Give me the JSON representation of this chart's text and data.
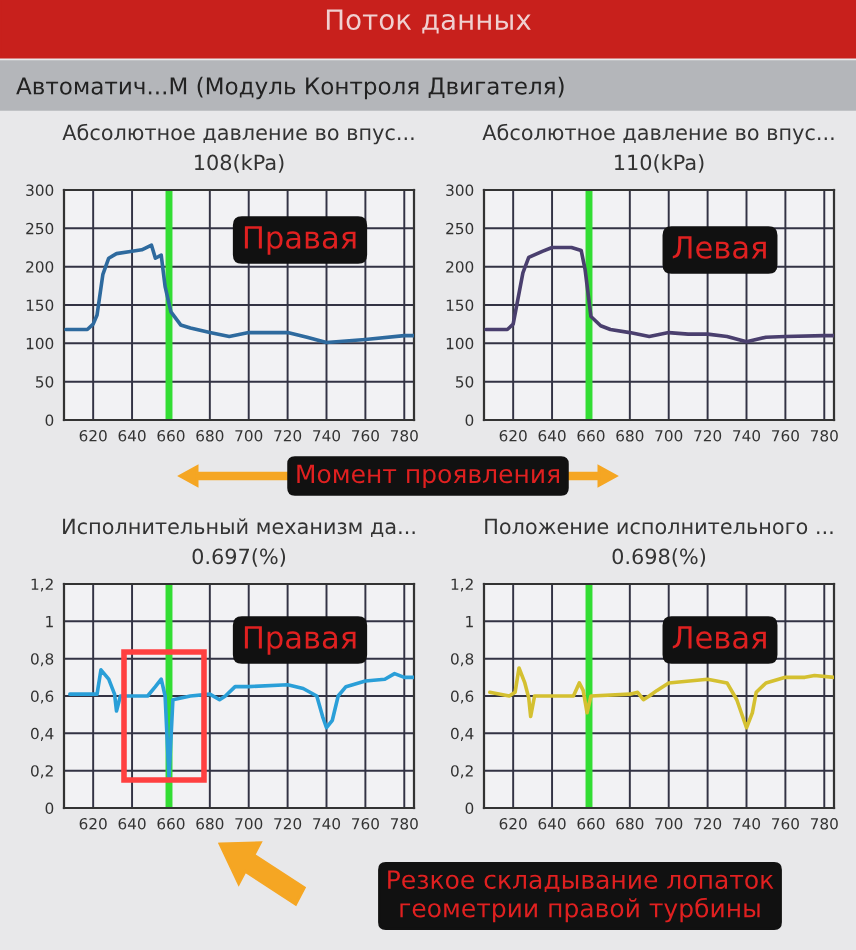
{
  "chart_data": [
    {
      "type": "line",
      "title": "Абсолютное давление во впус...",
      "subtitle": "108(kPa)",
      "xlim": [
        605,
        785
      ],
      "xticks": [
        620,
        640,
        660,
        680,
        700,
        720,
        740,
        760,
        780
      ],
      "ylim": [
        0,
        300
      ],
      "yticks": [
        0,
        50,
        100,
        150,
        200,
        250,
        300
      ],
      "grid": true,
      "legend": false,
      "marker": "none",
      "line_style": "solid",
      "series": [
        {
          "color": "#2e6a9e",
          "x": [
            606,
            617,
            620,
            622,
            625,
            628,
            632,
            640,
            645,
            650,
            652,
            655,
            657,
            660,
            665,
            670,
            680,
            690,
            700,
            720,
            730,
            740,
            760,
            780,
            785
          ],
          "values": [
            118,
            118,
            125,
            137,
            190,
            211,
            217,
            220,
            222,
            228,
            211,
            215,
            174,
            141,
            124,
            120,
            114,
            109,
            114,
            114,
            108,
            101,
            105,
            110,
            110
          ]
        }
      ],
      "ref_lines": [
        {
          "axis": "x",
          "value": 659,
          "label": null,
          "color": "#33dd33"
        }
      ],
      "annotations": [
        "Поток данных",
        "Автоматич...М (Модуль Контроля Двигателя)",
        "Правая",
        "Момент проявления"
      ]
    },
    {
      "type": "line",
      "title": "Абсолютное давление во впус...",
      "subtitle": "110(kPa)",
      "xlim": [
        605,
        785
      ],
      "xticks": [
        620,
        640,
        660,
        680,
        700,
        720,
        740,
        760,
        780
      ],
      "ylim": [
        0,
        300
      ],
      "yticks": [
        0,
        50,
        100,
        150,
        200,
        250,
        300
      ],
      "grid": true,
      "legend": false,
      "marker": "none",
      "line_style": "solid",
      "series": [
        {
          "color": "#4a3f6e",
          "x": [
            606,
            617,
            620,
            625,
            628,
            635,
            640,
            650,
            655,
            657,
            660,
            665,
            670,
            680,
            690,
            700,
            710,
            720,
            730,
            740,
            750,
            760,
            780,
            785
          ],
          "values": [
            118,
            118,
            125,
            192,
            212,
            220,
            225,
            225,
            221,
            196,
            135,
            123,
            118,
            114,
            109,
            114,
            112,
            112,
            109,
            102,
            108,
            109,
            110,
            110
          ]
        }
      ],
      "ref_lines": [
        {
          "axis": "x",
          "value": 659,
          "label": null,
          "color": "#33dd33"
        }
      ],
      "annotations": [
        "Левая"
      ]
    },
    {
      "type": "line",
      "title": "Исполнительный механизм да...",
      "subtitle": "0.697(%)",
      "xlim": [
        605,
        785
      ],
      "xticks": [
        620,
        640,
        660,
        680,
        700,
        720,
        740,
        760,
        780
      ],
      "ylim": [
        0,
        1.2
      ],
      "yticks": [
        0,
        {
          "value": 0.2,
          "label": "0,2"
        },
        {
          "value": 0.4,
          "label": "0,4"
        },
        {
          "value": 0.6,
          "label": "0,6"
        },
        {
          "value": 0.8,
          "label": "0,8"
        },
        1,
        {
          "value": 1.2,
          "label": "1,2"
        }
      ],
      "grid": true,
      "legend": false,
      "marker": "none",
      "line_style": "solid",
      "series": [
        {
          "color": "#2a9fd8",
          "x": [
            608,
            618,
            622,
            624,
            628,
            631,
            632,
            634,
            640,
            648,
            652,
            655,
            657,
            659,
            661,
            670,
            680,
            685,
            688,
            693,
            700,
            720,
            728,
            735,
            738,
            740,
            743,
            746,
            750,
            760,
            770,
            775,
            780,
            785
          ],
          "values": [
            0.61,
            0.61,
            0.61,
            0.74,
            0.69,
            0.61,
            0.52,
            0.6,
            0.6,
            0.6,
            0.65,
            0.69,
            0.6,
            0.16,
            0.58,
            0.6,
            0.61,
            0.58,
            0.6,
            0.65,
            0.65,
            0.66,
            0.64,
            0.6,
            0.49,
            0.43,
            0.47,
            0.6,
            0.65,
            0.68,
            0.69,
            0.72,
            0.7,
            0.7
          ]
        }
      ],
      "ref_lines": [
        {
          "axis": "x",
          "value": 659,
          "label": null,
          "color": "#33dd33"
        }
      ],
      "annotations": [
        "Правая",
        "Резкое складывание лопаток\nгеометрии правой турбины"
      ]
    },
    {
      "type": "line",
      "title": "Положение исполнительного ...",
      "subtitle": "0.698(%)",
      "xlim": [
        605,
        785
      ],
      "xticks": [
        620,
        640,
        660,
        680,
        700,
        720,
        740,
        760,
        780
      ],
      "ylim": [
        0,
        1.2
      ],
      "yticks": [
        0,
        {
          "value": 0.2,
          "label": "0,2"
        },
        {
          "value": 0.4,
          "label": "0,4"
        },
        {
          "value": 0.6,
          "label": "0,6"
        },
        {
          "value": 0.8,
          "label": "0,8"
        },
        1,
        {
          "value": 1.2,
          "label": "1,2"
        }
      ],
      "grid": true,
      "legend": false,
      "marker": "none",
      "line_style": "solid",
      "series": [
        {
          "color": "#d4c030",
          "x": [
            608,
            618,
            621,
            623,
            626,
            628,
            629,
            631,
            640,
            651,
            654,
            656,
            658,
            660,
            680,
            684,
            687,
            690,
            694,
            700,
            720,
            730,
            735,
            740,
            743,
            745,
            750,
            760,
            770,
            775,
            785
          ],
          "values": [
            0.62,
            0.6,
            0.62,
            0.75,
            0.67,
            0.59,
            0.49,
            0.6,
            0.6,
            0.6,
            0.67,
            0.63,
            0.51,
            0.6,
            0.61,
            0.62,
            0.58,
            0.6,
            0.63,
            0.67,
            0.69,
            0.67,
            0.58,
            0.43,
            0.51,
            0.62,
            0.67,
            0.7,
            0.7,
            0.71,
            0.7
          ]
        }
      ],
      "ref_lines": [
        {
          "axis": "x",
          "value": 659,
          "label": null,
          "color": "#33dd33"
        }
      ],
      "annotations": [
        "Левая"
      ]
    }
  ]
}
